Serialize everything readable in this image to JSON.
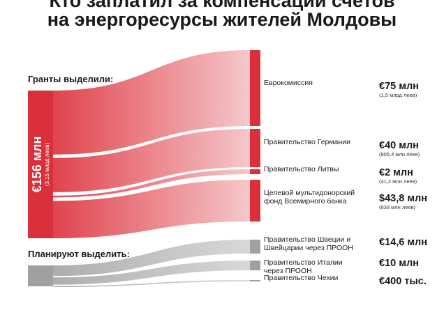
{
  "title_lines": [
    "Кто заплатил за компенсации счетов",
    "на энергоресурсы жителей Молдовы"
  ],
  "colors": {
    "granted": "#d9303b",
    "planned": "#a0a0a0",
    "text": "#1a1a1a"
  },
  "chart_data": {
    "type": "sankey",
    "groups": [
      {
        "label": "Гранты выделили:",
        "total": {
          "value": "€156 млн",
          "sub": "(3,15 млрд леев)"
        },
        "color": "#d9303b",
        "flows": [
          {
            "source": "Еврокомиссия",
            "value": 75,
            "currency": "EUR",
            "display": "€75 млн",
            "sub": "(1,5 млрд леев)"
          },
          {
            "source": "Правительство Германии",
            "value": 40,
            "currency": "EUR",
            "display": "€40 млн",
            "sub": "(805,4 млн леев)"
          },
          {
            "source": "Правительство Литвы",
            "value": 2,
            "currency": "EUR",
            "display": "€2 млн",
            "sub": "(41,2 млн леев)"
          },
          {
            "source": "Целевой мультидонорский фонд Всемирного банка",
            "value": 43.8,
            "currency": "USD",
            "display": "$43,8 млн",
            "sub": "(838 млн леев)"
          }
        ]
      },
      {
        "label": "Планируют выделить:",
        "color": "#a0a0a0",
        "flows": [
          {
            "source": "Правительство Швеции и Швейцарии через ПРООН",
            "value": 14.6,
            "currency": "EUR",
            "display": "€14,6 млн"
          },
          {
            "source": "Правительство Италии через ПРООН",
            "value": 10,
            "currency": "EUR",
            "display": "€10 млн"
          },
          {
            "source": "Правительство Чехии",
            "value": 0.4,
            "currency": "EUR",
            "display": "€400 тыс."
          }
        ]
      }
    ]
  }
}
